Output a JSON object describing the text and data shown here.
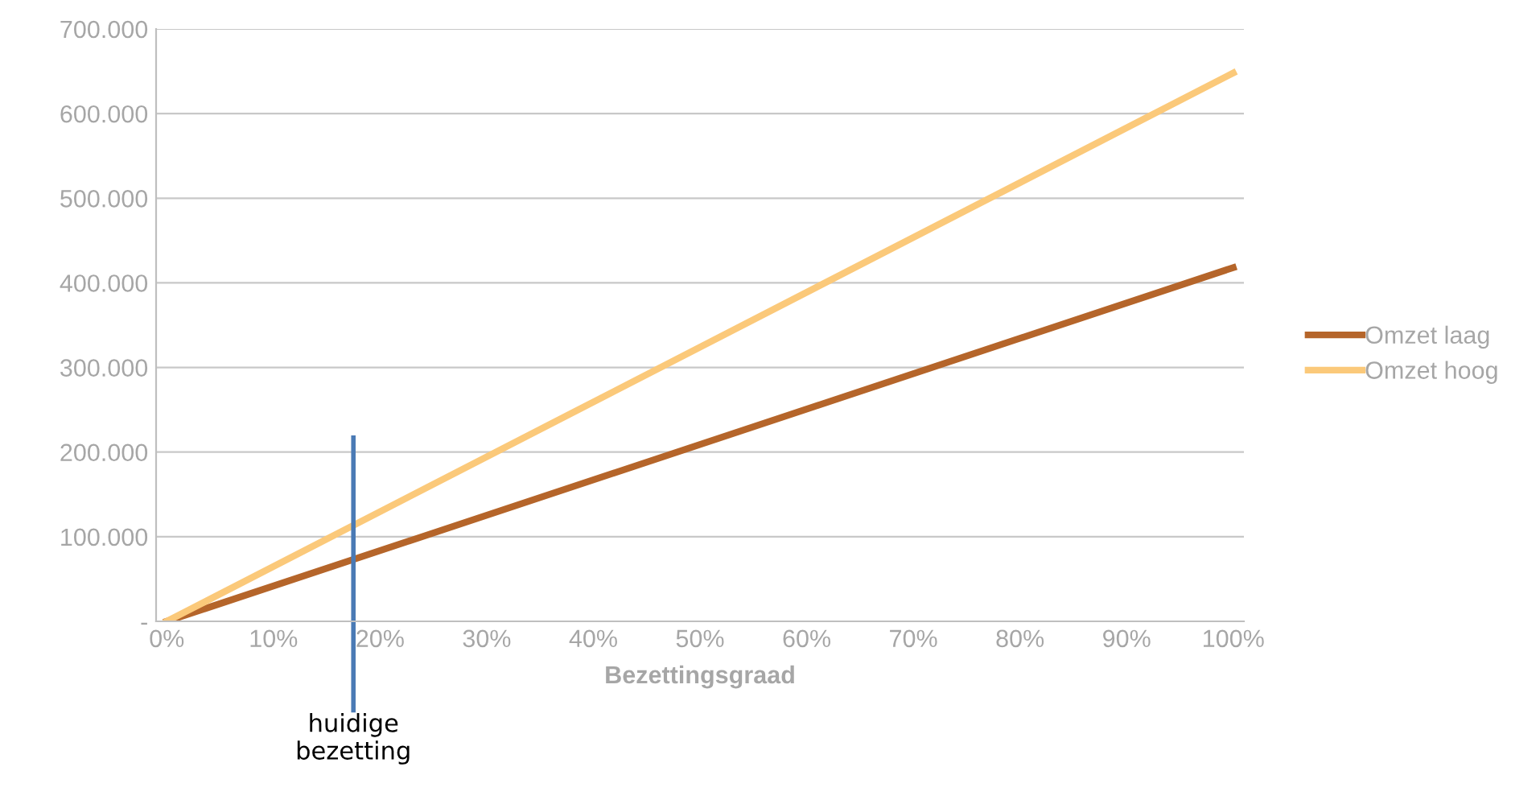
{
  "chart_data": {
    "type": "line",
    "xlabel": "Bezettingsgraad",
    "x": [
      0,
      100
    ],
    "series": [
      {
        "name": "Omzet laag",
        "color": "#b5652a",
        "values": [
          0,
          418000
        ]
      },
      {
        "name": "Omzet hoog",
        "color": "#fbc97a",
        "values": [
          0,
          648000
        ]
      }
    ],
    "xlim": [
      -1,
      101
    ],
    "xticks": [
      {
        "value": 0,
        "label": "0%"
      },
      {
        "value": 10,
        "label": "10%"
      },
      {
        "value": 20,
        "label": "20%"
      },
      {
        "value": 30,
        "label": "30%"
      },
      {
        "value": 40,
        "label": "40%"
      },
      {
        "value": 50,
        "label": "50%"
      },
      {
        "value": 60,
        "label": "60%"
      },
      {
        "value": 70,
        "label": "70%"
      },
      {
        "value": 80,
        "label": "80%"
      },
      {
        "value": 90,
        "label": "90%"
      },
      {
        "value": 100,
        "label": "100%"
      }
    ],
    "ylim": [
      0,
      700000
    ],
    "yticks": [
      {
        "value": 0,
        "label": "-"
      },
      {
        "value": 100000,
        "label": "100.000"
      },
      {
        "value": 200000,
        "label": "200.000"
      },
      {
        "value": 300000,
        "label": "300.000"
      },
      {
        "value": 400000,
        "label": "400.000"
      },
      {
        "value": 500000,
        "label": "500.000"
      },
      {
        "value": 600000,
        "label": "600.000"
      },
      {
        "value": 700000,
        "label": "700.000"
      }
    ],
    "ref_lines": [
      {
        "axis": "x",
        "value": 17.5,
        "label": "huidige\nbezetting",
        "color": "#4a7ab5"
      }
    ],
    "grid": "y",
    "legend": "right",
    "marker": "none",
    "line_style": "solid"
  }
}
